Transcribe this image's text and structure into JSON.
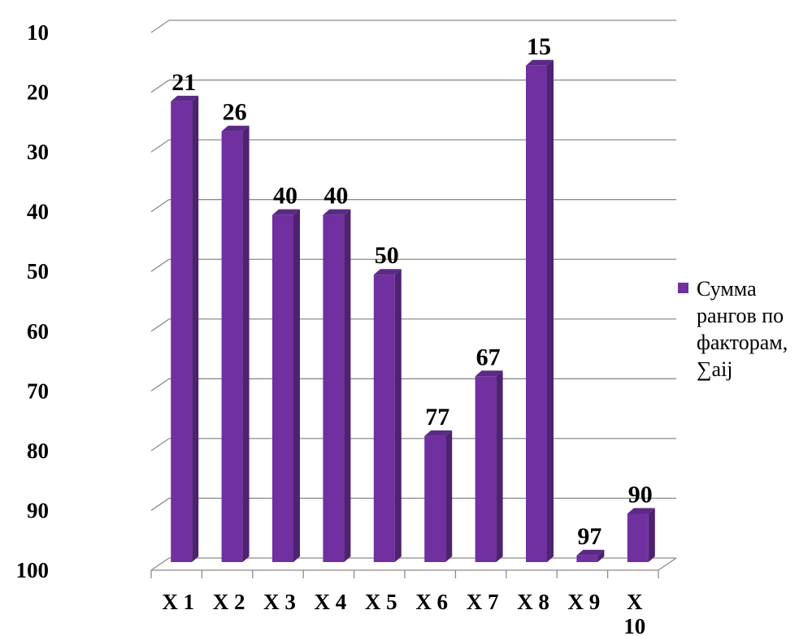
{
  "chart_data": {
    "type": "bar",
    "title": "",
    "xlabel": "",
    "ylabel": "",
    "y_axis_reversed": true,
    "ylim": [
      10,
      100
    ],
    "yticks": [
      "10",
      "20",
      "30",
      "40",
      "50",
      "60",
      "70",
      "80",
      "90",
      "100"
    ],
    "categories": [
      [
        "X 1"
      ],
      [
        "X 2"
      ],
      [
        "X 3"
      ],
      [
        "X 4"
      ],
      [
        "X 5"
      ],
      [
        "X 6"
      ],
      [
        "X 7"
      ],
      [
        "X 8"
      ],
      [
        "X 9"
      ],
      [
        "X",
        "10"
      ]
    ],
    "series": [
      {
        "name": "Сумма рангов по факторам, ∑aij",
        "legend_lines": [
          "Сумма",
          "рангов по",
          "факторам,",
          "∑aij"
        ],
        "values": [
          21,
          26,
          40,
          40,
          50,
          77,
          67,
          15,
          97,
          90
        ],
        "color": "#7030a0"
      }
    ],
    "grid": true,
    "legend": "right",
    "style": "3d-column"
  }
}
